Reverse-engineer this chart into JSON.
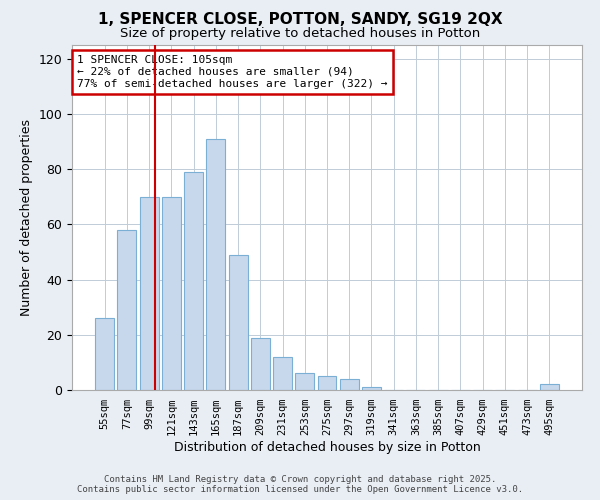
{
  "title": "1, SPENCER CLOSE, POTTON, SANDY, SG19 2QX",
  "subtitle": "Size of property relative to detached houses in Potton",
  "xlabel": "Distribution of detached houses by size in Potton",
  "ylabel": "Number of detached properties",
  "bar_color": "#c8d8ec",
  "bar_edge_color": "#7bafd4",
  "categories": [
    "55sqm",
    "77sqm",
    "99sqm",
    "121sqm",
    "143sqm",
    "165sqm",
    "187sqm",
    "209sqm",
    "231sqm",
    "253sqm",
    "275sqm",
    "297sqm",
    "319sqm",
    "341sqm",
    "363sqm",
    "385sqm",
    "407sqm",
    "429sqm",
    "451sqm",
    "473sqm",
    "495sqm"
  ],
  "values": [
    26,
    58,
    70,
    70,
    79,
    91,
    49,
    19,
    12,
    6,
    5,
    4,
    1,
    0,
    0,
    0,
    0,
    0,
    0,
    0,
    2
  ],
  "ylim": [
    0,
    125
  ],
  "yticks": [
    0,
    20,
    40,
    60,
    80,
    100,
    120
  ],
  "vline_color": "#cc0000",
  "annotation_title": "1 SPENCER CLOSE: 105sqm",
  "annotation_line1": "← 22% of detached houses are smaller (94)",
  "annotation_line2": "77% of semi-detached houses are larger (322) →",
  "footer_line1": "Contains HM Land Registry data © Crown copyright and database right 2025.",
  "footer_line2": "Contains public sector information licensed under the Open Government Licence v3.0.",
  "background_color": "#e8eef4",
  "plot_background": "#ffffff",
  "grid_color": "#c0ccd8"
}
